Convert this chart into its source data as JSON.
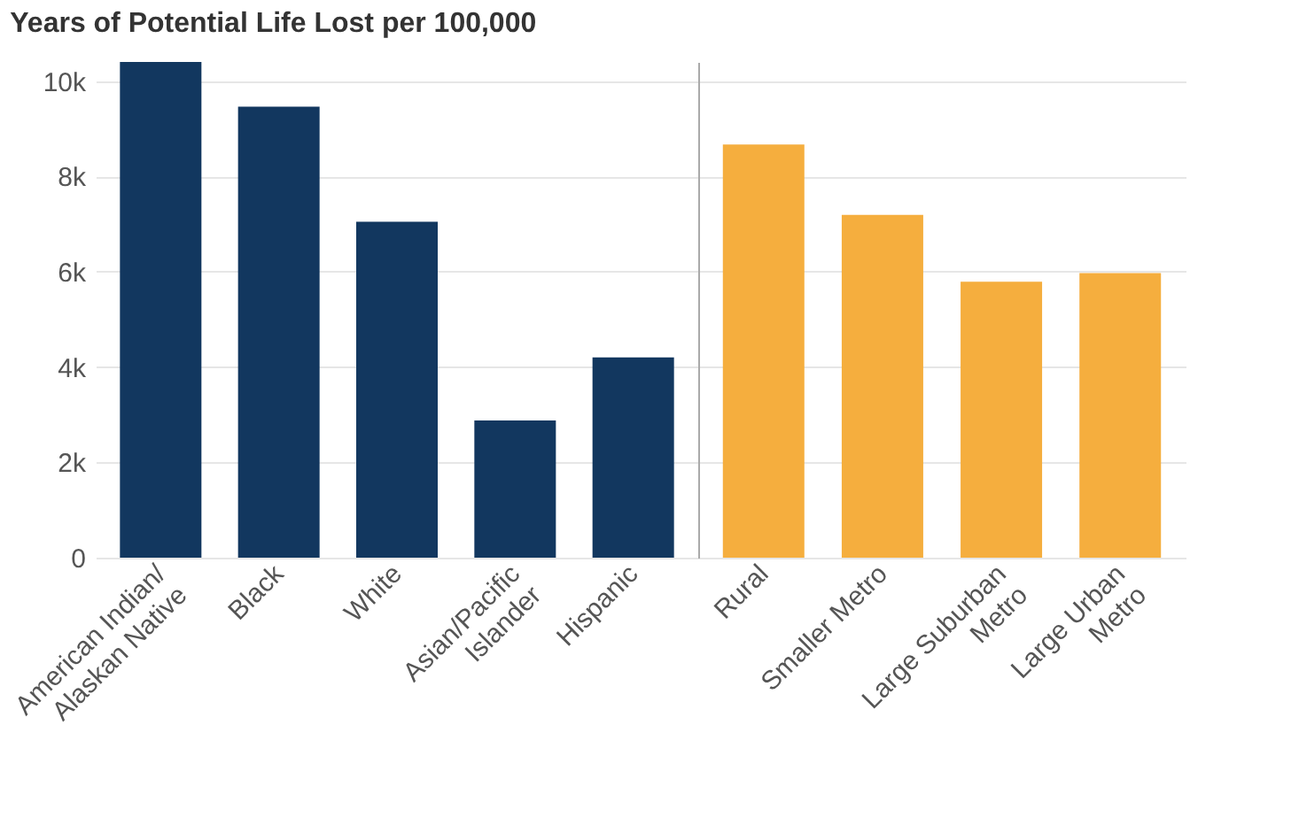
{
  "chart_data": [
    {
      "type": "bar",
      "title": "Years of Potential Life Lost per 100,000",
      "categories": [
        "American Indian/\nAlaskan Native",
        "Black",
        "White",
        "Asian/Pacific\nIslander",
        "Hispanic"
      ],
      "series": [
        {
          "color": "#12375f",
          "values": [
            10400,
            9460,
            7050,
            2880,
            4200
          ]
        }
      ],
      "ylim": [
        0,
        10400
      ],
      "yticks": [
        {
          "value": 0,
          "label": "0"
        },
        {
          "value": 2000,
          "label": "2k"
        },
        {
          "value": 4000,
          "label": "4k"
        },
        {
          "value": 6000,
          "label": "6k"
        },
        {
          "value": 8000,
          "label": "8k"
        },
        {
          "value": 10000,
          "label": "10k"
        }
      ],
      "grid": "y"
    },
    {
      "type": "bar",
      "categories": [
        "Rural",
        "Smaller Metro",
        "Large Suburban\nMetro",
        "Large Urban\nMetro"
      ],
      "series": [
        {
          "color": "#f5ae3e",
          "values": [
            8670,
            7190,
            5790,
            5970
          ]
        }
      ],
      "ylim": [
        0,
        10400
      ],
      "yticks": [
        0,
        2000,
        4000,
        6000,
        8000,
        10000
      ],
      "grid": "y",
      "tick_labels": "x"
    }
  ]
}
